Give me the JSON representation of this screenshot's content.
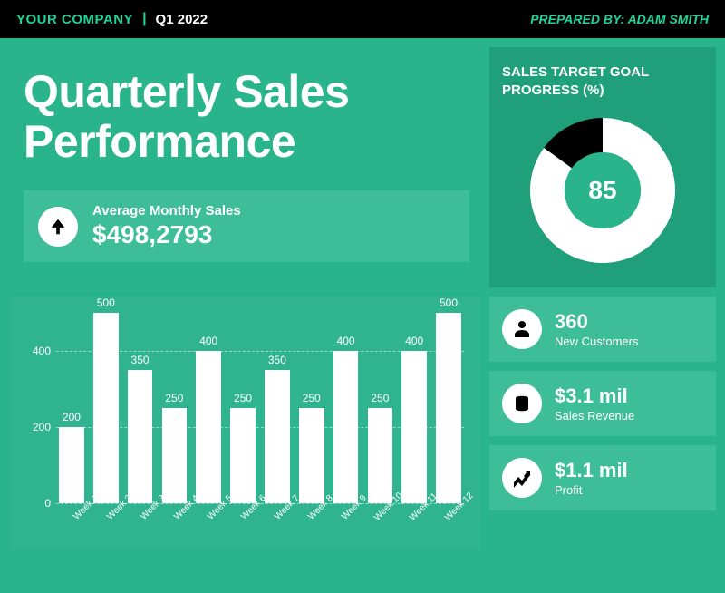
{
  "colors": {
    "page_bg": "#29b48b",
    "topbar_bg": "#000000",
    "accent": "#1dd49a",
    "panel_dark": "#1f9f7a",
    "panel_mid": "#30b48f",
    "panel_light": "#3ebe98",
    "white": "#ffffff",
    "donut_remainder": "#000000"
  },
  "header": {
    "company": "YOUR COMPANY",
    "period": "Q1 2022",
    "prepared_by_label": "PREPARED BY:",
    "prepared_by_name": "ADAM SMITH"
  },
  "title": "Quarterly Sales Performance",
  "avg_monthly": {
    "label": "Average Monthly Sales",
    "value": "$498,2793",
    "trend": "up"
  },
  "donut": {
    "title": "SALES TARGET GOAL PROGRESS (%)",
    "value": 85,
    "value_text": "85",
    "ring_color": "#ffffff",
    "remainder_color": "#000000",
    "center_color": "#29b48b",
    "bg": "#1f9f7a",
    "inner_radius": 42,
    "outer_radius": 80
  },
  "bar_chart": {
    "type": "bar",
    "ylim": [
      0,
      500
    ],
    "yticks": [
      0,
      200,
      400
    ],
    "grid_color": "rgba(255,255,255,0.5)",
    "grid_dash": true,
    "bar_color": "#ffffff",
    "label_color": "#ffffff",
    "bg": "#30b48f",
    "label_fontsize": 12,
    "xlabel_fontsize": 10,
    "xlabel_rotation": -45,
    "categories": [
      "Week 1",
      "Week 2",
      "Week 3",
      "Week 4",
      "Week 5",
      "Week 6",
      "Week 7",
      "Week 8",
      "Week 9",
      "Week 10",
      "Week 11",
      "Week 12"
    ],
    "values": [
      200,
      500,
      350,
      250,
      400,
      250,
      350,
      250,
      400,
      250,
      400,
      500
    ]
  },
  "kpis": [
    {
      "icon": "person",
      "value": "360",
      "label": "New Customers"
    },
    {
      "icon": "coins",
      "value": "$3.1 mil",
      "label": "Sales Revenue"
    },
    {
      "icon": "trend",
      "value": "$1.1 mil",
      "label": "Profit"
    }
  ]
}
